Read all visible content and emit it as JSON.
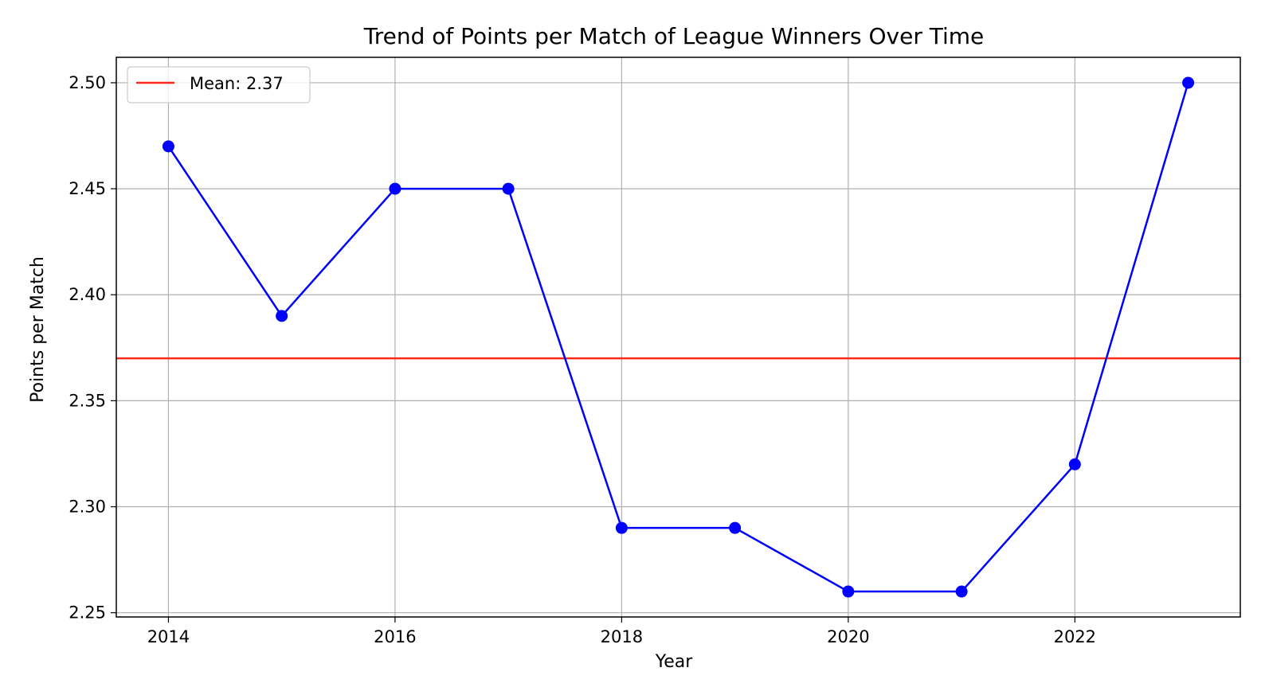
{
  "chart_data": {
    "type": "line",
    "title": "Trend of Points per Match of League Winners Over Time",
    "xlabel": "Year",
    "ylabel": "Points per Match",
    "x": [
      2014,
      2015,
      2016,
      2017,
      2018,
      2019,
      2020,
      2021,
      2022,
      2023
    ],
    "series": [
      {
        "values": [
          2.47,
          2.39,
          2.45,
          2.45,
          2.29,
          2.29,
          2.26,
          2.26,
          2.32,
          2.5
        ],
        "color": "#0000ff",
        "marker": "circle"
      }
    ],
    "reference_lines": [
      {
        "label": "Mean: 2.37",
        "value": 2.37,
        "color": "#ff2b1a",
        "orientation": "horizontal"
      }
    ],
    "x_ticks": [
      2014,
      2016,
      2018,
      2020,
      2022
    ],
    "x_tick_labels": [
      "2014",
      "2016",
      "2018",
      "2020",
      "2022"
    ],
    "y_ticks": [
      2.25,
      2.3,
      2.35,
      2.4,
      2.45,
      2.5
    ],
    "y_tick_labels": [
      "2.25",
      "2.30",
      "2.35",
      "2.40",
      "2.45",
      "2.50"
    ],
    "xlim": [
      2013.54,
      2023.46
    ],
    "ylim": [
      2.248,
      2.512
    ],
    "grid": true,
    "legend": {
      "placement": "top-left",
      "entries": [
        "Mean: 2.37"
      ]
    }
  }
}
